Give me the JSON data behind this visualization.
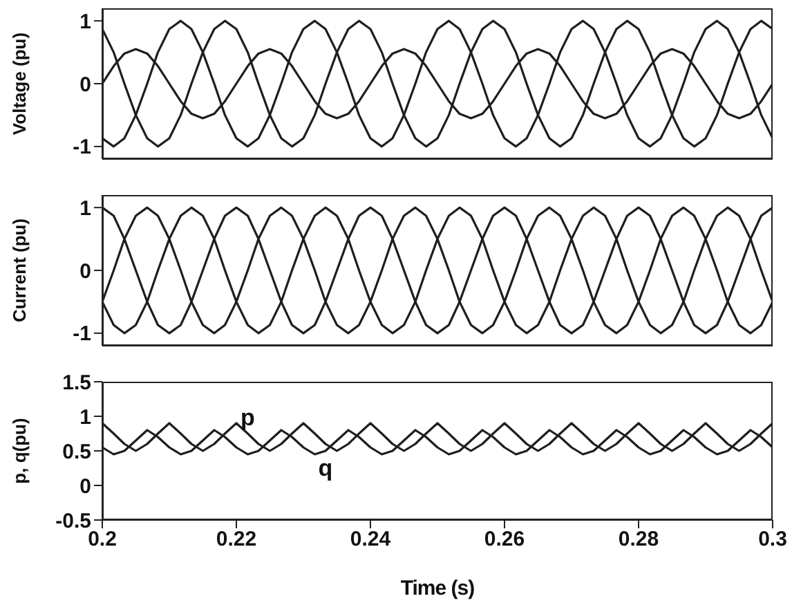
{
  "chart_data": [
    {
      "type": "line",
      "ylabel": "Voltage (pu)",
      "xlim": [
        0.2,
        0.3
      ],
      "xticks": [
        0.2,
        0.22,
        0.24,
        0.26,
        0.28,
        0.3
      ],
      "ylim": [
        -1.2,
        1.2
      ],
      "yticks": [
        -1,
        0,
        1
      ],
      "tick_labels": "y",
      "x": [
        0.2,
        0.2017,
        0.2033,
        0.205,
        0.2067,
        0.2083,
        0.21,
        0.2117,
        0.2133,
        0.215,
        0.2167,
        0.2183,
        0.22,
        0.2217,
        0.2233,
        0.225,
        0.2267,
        0.2283,
        0.23,
        0.2317,
        0.2333,
        0.235,
        0.2367,
        0.2383,
        0.24,
        0.2417,
        0.2433,
        0.245,
        0.2467,
        0.2483,
        0.25,
        0.2517,
        0.2533,
        0.255,
        0.2567,
        0.2583,
        0.26,
        0.2617,
        0.2633,
        0.265,
        0.2667,
        0.2683,
        0.27,
        0.2717,
        0.2733,
        0.275,
        0.2767,
        0.2783,
        0.28,
        0.2817,
        0.2833,
        0.285,
        0.2867,
        0.2883,
        0.29,
        0.2917,
        0.2933,
        0.295,
        0.2967,
        0.2983,
        0.3
      ],
      "series": [
        {
          "color": "#1e1e1e",
          "values": [
            -0.87,
            -1,
            -0.87,
            -0.5,
            0,
            0.5,
            0.87,
            1,
            0.87,
            0.5,
            0,
            -0.5,
            -0.87,
            -1,
            -0.87,
            -0.5,
            0,
            0.5,
            0.87,
            1,
            0.87,
            0.5,
            0,
            -0.5,
            -0.87,
            -1,
            -0.87,
            -0.5,
            0,
            0.5,
            0.87,
            1,
            0.87,
            0.5,
            0,
            -0.5,
            -0.87,
            -1,
            -0.87,
            -0.5,
            0,
            0.5,
            0.87,
            1,
            0.87,
            0.5,
            0,
            -0.5,
            -0.87,
            -1,
            -0.87,
            -0.5,
            0,
            0.5,
            0.87,
            1,
            0.87,
            0.5,
            0,
            -0.5,
            -0.87
          ]
        },
        {
          "color": "#1e1e1e",
          "values": [
            0.87,
            0.5,
            0,
            -0.5,
            -0.87,
            -1,
            -0.87,
            -0.5,
            0,
            0.5,
            0.87,
            1,
            0.87,
            0.5,
            0,
            -0.5,
            -0.87,
            -1,
            -0.87,
            -0.5,
            0,
            0.5,
            0.87,
            1,
            0.87,
            0.5,
            0,
            -0.5,
            -0.87,
            -1,
            -0.87,
            -0.5,
            0,
            0.5,
            0.87,
            1,
            0.87,
            0.5,
            0,
            -0.5,
            -0.87,
            -1,
            -0.87,
            -0.5,
            0,
            0.5,
            0.87,
            1,
            0.87,
            0.5,
            0,
            -0.5,
            -0.87,
            -1,
            -0.87,
            -0.5,
            0,
            0.5,
            0.87,
            1,
            0.87
          ]
        },
        {
          "color": "#1e1e1e",
          "values": [
            0,
            0.28,
            0.48,
            0.55,
            0.48,
            0.28,
            0,
            -0.28,
            -0.48,
            -0.55,
            -0.48,
            -0.28,
            0,
            0.28,
            0.48,
            0.55,
            0.48,
            0.28,
            0,
            -0.28,
            -0.48,
            -0.55,
            -0.48,
            -0.28,
            0,
            0.28,
            0.48,
            0.55,
            0.48,
            0.28,
            0,
            -0.28,
            -0.48,
            -0.55,
            -0.48,
            -0.28,
            0,
            0.28,
            0.48,
            0.55,
            0.48,
            0.28,
            0,
            -0.28,
            -0.48,
            -0.55,
            -0.48,
            -0.28,
            0,
            0.28,
            0.48,
            0.55,
            0.48,
            0.28,
            0,
            -0.28,
            -0.48,
            -0.55,
            -0.48,
            -0.28,
            0
          ]
        }
      ]
    },
    {
      "type": "line",
      "ylabel": "Current (pu)",
      "xlim": [
        0.2,
        0.3
      ],
      "xticks": [
        0.2,
        0.22,
        0.24,
        0.26,
        0.28,
        0.3
      ],
      "ylim": [
        -1.2,
        1.2
      ],
      "yticks": [
        -1,
        0,
        1
      ],
      "tick_labels": "y",
      "x": [
        0.2,
        0.2017,
        0.2033,
        0.205,
        0.2067,
        0.2083,
        0.21,
        0.2117,
        0.2133,
        0.215,
        0.2167,
        0.2183,
        0.22,
        0.2217,
        0.2233,
        0.225,
        0.2267,
        0.2283,
        0.23,
        0.2317,
        0.2333,
        0.235,
        0.2367,
        0.2383,
        0.24,
        0.2417,
        0.2433,
        0.245,
        0.2467,
        0.2483,
        0.25,
        0.2517,
        0.2533,
        0.255,
        0.2567,
        0.2583,
        0.26,
        0.2617,
        0.2633,
        0.265,
        0.2667,
        0.2683,
        0.27,
        0.2717,
        0.2733,
        0.275,
        0.2767,
        0.2783,
        0.28,
        0.2817,
        0.2833,
        0.285,
        0.2867,
        0.2883,
        0.29,
        0.2917,
        0.2933,
        0.295,
        0.2967,
        0.2983,
        0.3
      ],
      "series": [
        {
          "color": "#1e1e1e",
          "values": [
            1,
            0.87,
            0.5,
            0,
            -0.5,
            -0.87,
            -1,
            -0.87,
            -0.5,
            0,
            0.5,
            0.87,
            1,
            0.87,
            0.5,
            0,
            -0.5,
            -0.87,
            -1,
            -0.87,
            -0.5,
            0,
            0.5,
            0.87,
            1,
            0.87,
            0.5,
            0,
            -0.5,
            -0.87,
            -1,
            -0.87,
            -0.5,
            0,
            0.5,
            0.87,
            1,
            0.87,
            0.5,
            0,
            -0.5,
            -0.87,
            -1,
            -0.87,
            -0.5,
            0,
            0.5,
            0.87,
            1,
            0.87,
            0.5,
            0,
            -0.5,
            -0.87,
            -1,
            -0.87,
            -0.5,
            0,
            0.5,
            0.87,
            1
          ]
        },
        {
          "color": "#1e1e1e",
          "values": [
            -0.5,
            0,
            0.5,
            0.87,
            1,
            0.87,
            0.5,
            0,
            -0.5,
            -0.87,
            -1,
            -0.87,
            -0.5,
            0,
            0.5,
            0.87,
            1,
            0.87,
            0.5,
            0,
            -0.5,
            -0.87,
            -1,
            -0.87,
            -0.5,
            0,
            0.5,
            0.87,
            1,
            0.87,
            0.5,
            0,
            -0.5,
            -0.87,
            -1,
            -0.87,
            -0.5,
            0,
            0.5,
            0.87,
            1,
            0.87,
            0.5,
            0,
            -0.5,
            -0.87,
            -1,
            -0.87,
            -0.5,
            0,
            0.5,
            0.87,
            1,
            0.87,
            0.5,
            0,
            -0.5,
            -0.87,
            -1,
            -0.87,
            -0.5
          ]
        },
        {
          "color": "#1e1e1e",
          "values": [
            -0.5,
            -0.87,
            -1,
            -0.87,
            -0.5,
            0,
            0.5,
            0.87,
            1,
            0.87,
            0.5,
            0,
            -0.5,
            -0.87,
            -1,
            -0.87,
            -0.5,
            0,
            0.5,
            0.87,
            1,
            0.87,
            0.5,
            0,
            -0.5,
            -0.87,
            -1,
            -0.87,
            -0.5,
            0,
            0.5,
            0.87,
            1,
            0.87,
            0.5,
            0,
            -0.5,
            -0.87,
            -1,
            -0.87,
            -0.5,
            0,
            0.5,
            0.87,
            1,
            0.87,
            0.5,
            0,
            -0.5,
            -0.87,
            -1,
            -0.87,
            -0.5,
            0,
            0.5,
            0.87,
            1,
            0.87,
            0.5,
            0,
            -0.5
          ]
        }
      ]
    },
    {
      "type": "line",
      "ylabel": "p, q(pu)",
      "xlabel": "Time (s)",
      "xlim": [
        0.2,
        0.3
      ],
      "xticks": [
        0.2,
        0.22,
        0.24,
        0.26,
        0.28,
        0.3
      ],
      "ylim": [
        -0.5,
        1.5
      ],
      "yticks": [
        -0.5,
        0,
        0.5,
        1,
        1.5
      ],
      "x": [
        0.2,
        0.2017,
        0.2033,
        0.205,
        0.2067,
        0.2083,
        0.21,
        0.2117,
        0.2133,
        0.215,
        0.2167,
        0.2183,
        0.22,
        0.2217,
        0.2233,
        0.225,
        0.2267,
        0.2283,
        0.23,
        0.2317,
        0.2333,
        0.235,
        0.2367,
        0.2383,
        0.24,
        0.2417,
        0.2433,
        0.245,
        0.2467,
        0.2483,
        0.25,
        0.2517,
        0.2533,
        0.255,
        0.2567,
        0.2583,
        0.26,
        0.2617,
        0.2633,
        0.265,
        0.2667,
        0.2683,
        0.27,
        0.2717,
        0.2733,
        0.275,
        0.2767,
        0.2783,
        0.28,
        0.2817,
        0.2833,
        0.285,
        0.2867,
        0.2883,
        0.29,
        0.2917,
        0.2933,
        0.295,
        0.2967,
        0.2983,
        0.3
      ],
      "series": [
        {
          "name": "p",
          "color": "#1e1e1e",
          "values": [
            0.9,
            0.75,
            0.6,
            0.5,
            0.6,
            0.75,
            0.9,
            0.75,
            0.6,
            0.5,
            0.6,
            0.75,
            0.9,
            0.75,
            0.6,
            0.5,
            0.6,
            0.75,
            0.9,
            0.75,
            0.6,
            0.5,
            0.6,
            0.75,
            0.9,
            0.75,
            0.6,
            0.5,
            0.6,
            0.75,
            0.9,
            0.75,
            0.6,
            0.5,
            0.6,
            0.75,
            0.9,
            0.75,
            0.6,
            0.5,
            0.6,
            0.75,
            0.9,
            0.75,
            0.6,
            0.5,
            0.6,
            0.75,
            0.9,
            0.75,
            0.6,
            0.5,
            0.6,
            0.75,
            0.9,
            0.75,
            0.6,
            0.5,
            0.6,
            0.75,
            0.9
          ]
        },
        {
          "name": "q",
          "color": "#1e1e1e",
          "values": [
            0.55,
            0.45,
            0.5,
            0.65,
            0.8,
            0.7,
            0.55,
            0.45,
            0.5,
            0.65,
            0.8,
            0.7,
            0.55,
            0.45,
            0.5,
            0.65,
            0.8,
            0.7,
            0.55,
            0.45,
            0.5,
            0.65,
            0.8,
            0.7,
            0.55,
            0.45,
            0.5,
            0.65,
            0.8,
            0.7,
            0.55,
            0.45,
            0.5,
            0.65,
            0.8,
            0.7,
            0.55,
            0.45,
            0.5,
            0.65,
            0.8,
            0.7,
            0.55,
            0.45,
            0.5,
            0.65,
            0.8,
            0.7,
            0.55,
            0.45,
            0.5,
            0.65,
            0.8,
            0.7,
            0.55,
            0.45,
            0.5,
            0.65,
            0.8,
            0.7,
            0.55
          ]
        }
      ]
    }
  ]
}
